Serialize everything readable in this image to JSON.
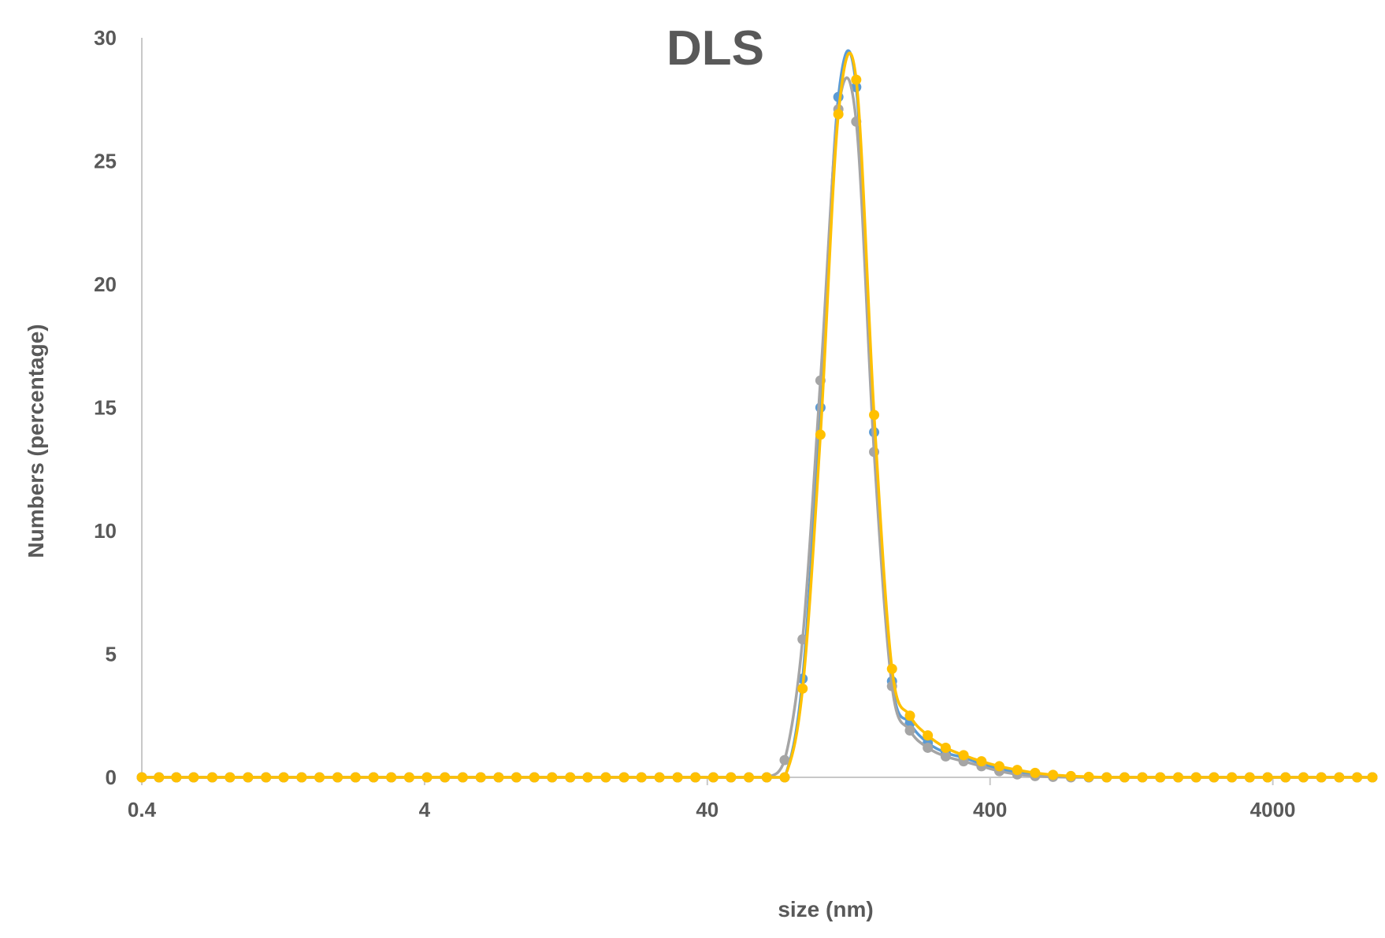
{
  "chart_data": {
    "type": "line",
    "title": "DLS",
    "xlabel": "size (nm)",
    "ylabel": "Numbers (percentage)",
    "xscale": "log",
    "xlim": [
      0.4,
      9000
    ],
    "ylim": [
      0,
      30
    ],
    "xticks": [
      "0.4",
      "4",
      "40",
      "400",
      "4000"
    ],
    "yticks": [
      "0",
      "5",
      "10",
      "15",
      "20",
      "25",
      "30"
    ],
    "grid": false,
    "legend": "none",
    "series": [
      {
        "color": "#5B9BD5",
        "points": [
          [
            0.4,
            0
          ],
          [
            0.46,
            0
          ],
          [
            0.53,
            0
          ],
          [
            0.61,
            0
          ],
          [
            0.71,
            0
          ],
          [
            0.82,
            0
          ],
          [
            0.95,
            0
          ],
          [
            1.1,
            0
          ],
          [
            1.27,
            0
          ],
          [
            1.47,
            0
          ],
          [
            1.7,
            0
          ],
          [
            1.97,
            0
          ],
          [
            2.28,
            0
          ],
          [
            2.64,
            0
          ],
          [
            3.05,
            0
          ],
          [
            3.53,
            0
          ],
          [
            4.08,
            0
          ],
          [
            4.72,
            0
          ],
          [
            5.46,
            0
          ],
          [
            6.32,
            0
          ],
          [
            7.31,
            0
          ],
          [
            8.45,
            0
          ],
          [
            9.78,
            0
          ],
          [
            11.3,
            0
          ],
          [
            13.1,
            0
          ],
          [
            15.1,
            0
          ],
          [
            17.5,
            0
          ],
          [
            20.3,
            0
          ],
          [
            23.4,
            0
          ],
          [
            27.1,
            0
          ],
          [
            31.4,
            0
          ],
          [
            36.3,
            0
          ],
          [
            42,
            0
          ],
          [
            48.5,
            0
          ],
          [
            56.1,
            0
          ],
          [
            64.9,
            0
          ],
          [
            75.1,
            0
          ],
          [
            86.9,
            4.0
          ],
          [
            100.5,
            15.0
          ],
          [
            116.3,
            27.6
          ],
          [
            134.5,
            28.0
          ],
          [
            155.6,
            14.0
          ],
          [
            180,
            3.9
          ],
          [
            208.3,
            2.2
          ],
          [
            240.9,
            1.4
          ],
          [
            278.7,
            1.0
          ],
          [
            322.4,
            0.8
          ],
          [
            373,
            0.55
          ],
          [
            431.4,
            0.35
          ],
          [
            499.1,
            0.2
          ],
          [
            577.3,
            0.1
          ],
          [
            667.9,
            0.05
          ],
          [
            772.6,
            0.02
          ],
          [
            893.8,
            0
          ],
          [
            1034,
            0
          ],
          [
            1196,
            0
          ],
          [
            1383,
            0
          ],
          [
            1600,
            0
          ],
          [
            1851,
            0
          ],
          [
            2142,
            0
          ],
          [
            2477,
            0
          ],
          [
            2866,
            0
          ],
          [
            3315,
            0
          ],
          [
            3835,
            0
          ],
          [
            4437,
            0
          ],
          [
            5133,
            0
          ],
          [
            5938,
            0
          ],
          [
            6869,
            0
          ],
          [
            7946,
            0
          ],
          [
            9000,
            0
          ]
        ]
      },
      {
        "color": "#A5A5A5",
        "points": [
          [
            0.4,
            0
          ],
          [
            0.46,
            0
          ],
          [
            0.53,
            0
          ],
          [
            0.61,
            0
          ],
          [
            0.71,
            0
          ],
          [
            0.82,
            0
          ],
          [
            0.95,
            0
          ],
          [
            1.1,
            0
          ],
          [
            1.27,
            0
          ],
          [
            1.47,
            0
          ],
          [
            1.7,
            0
          ],
          [
            1.97,
            0
          ],
          [
            2.28,
            0
          ],
          [
            2.64,
            0
          ],
          [
            3.05,
            0
          ],
          [
            3.53,
            0
          ],
          [
            4.08,
            0
          ],
          [
            4.72,
            0
          ],
          [
            5.46,
            0
          ],
          [
            6.32,
            0
          ],
          [
            7.31,
            0
          ],
          [
            8.45,
            0
          ],
          [
            9.78,
            0
          ],
          [
            11.3,
            0
          ],
          [
            13.1,
            0
          ],
          [
            15.1,
            0
          ],
          [
            17.5,
            0
          ],
          [
            20.3,
            0
          ],
          [
            23.4,
            0
          ],
          [
            27.1,
            0
          ],
          [
            31.4,
            0
          ],
          [
            36.3,
            0
          ],
          [
            42,
            0
          ],
          [
            48.5,
            0
          ],
          [
            56.1,
            0
          ],
          [
            64.9,
            0
          ],
          [
            75.1,
            0.7
          ],
          [
            86.9,
            5.6
          ],
          [
            100.5,
            16.1
          ],
          [
            116.3,
            27.1
          ],
          [
            134.5,
            26.6
          ],
          [
            155.6,
            13.2
          ],
          [
            180,
            3.7
          ],
          [
            208.3,
            1.9
          ],
          [
            240.9,
            1.2
          ],
          [
            278.7,
            0.85
          ],
          [
            322.4,
            0.65
          ],
          [
            373,
            0.45
          ],
          [
            431.4,
            0.25
          ],
          [
            499.1,
            0.12
          ],
          [
            577.3,
            0.05
          ],
          [
            667.9,
            0.02
          ],
          [
            772.6,
            0
          ],
          [
            893.8,
            0
          ],
          [
            1034,
            0
          ],
          [
            1196,
            0
          ],
          [
            1383,
            0
          ],
          [
            1600,
            0
          ],
          [
            1851,
            0
          ],
          [
            2142,
            0
          ],
          [
            2477,
            0
          ],
          [
            2866,
            0
          ],
          [
            3315,
            0
          ],
          [
            3835,
            0
          ],
          [
            4437,
            0
          ],
          [
            5133,
            0
          ],
          [
            5938,
            0
          ],
          [
            6869,
            0
          ],
          [
            7946,
            0
          ],
          [
            9000,
            0
          ]
        ]
      },
      {
        "color": "#FFC000",
        "points": [
          [
            0.4,
            0
          ],
          [
            0.46,
            0
          ],
          [
            0.53,
            0
          ],
          [
            0.61,
            0
          ],
          [
            0.71,
            0
          ],
          [
            0.82,
            0
          ],
          [
            0.95,
            0
          ],
          [
            1.1,
            0
          ],
          [
            1.27,
            0
          ],
          [
            1.47,
            0
          ],
          [
            1.7,
            0
          ],
          [
            1.97,
            0
          ],
          [
            2.28,
            0
          ],
          [
            2.64,
            0
          ],
          [
            3.05,
            0
          ],
          [
            3.53,
            0
          ],
          [
            4.08,
            0
          ],
          [
            4.72,
            0
          ],
          [
            5.46,
            0
          ],
          [
            6.32,
            0
          ],
          [
            7.31,
            0
          ],
          [
            8.45,
            0
          ],
          [
            9.78,
            0
          ],
          [
            11.3,
            0
          ],
          [
            13.1,
            0
          ],
          [
            15.1,
            0
          ],
          [
            17.5,
            0
          ],
          [
            20.3,
            0
          ],
          [
            23.4,
            0
          ],
          [
            27.1,
            0
          ],
          [
            31.4,
            0
          ],
          [
            36.3,
            0
          ],
          [
            42,
            0
          ],
          [
            48.5,
            0
          ],
          [
            56.1,
            0
          ],
          [
            64.9,
            0
          ],
          [
            75.1,
            0
          ],
          [
            86.9,
            3.6
          ],
          [
            100.5,
            13.9
          ],
          [
            116.3,
            26.9
          ],
          [
            134.5,
            28.3
          ],
          [
            155.6,
            14.7
          ],
          [
            180,
            4.4
          ],
          [
            208.3,
            2.5
          ],
          [
            240.9,
            1.7
          ],
          [
            278.7,
            1.2
          ],
          [
            322.4,
            0.9
          ],
          [
            373,
            0.65
          ],
          [
            431.4,
            0.45
          ],
          [
            499.1,
            0.3
          ],
          [
            577.3,
            0.18
          ],
          [
            667.9,
            0.1
          ],
          [
            772.6,
            0.05
          ],
          [
            893.8,
            0.02
          ],
          [
            1034,
            0
          ],
          [
            1196,
            0
          ],
          [
            1383,
            0
          ],
          [
            1600,
            0
          ],
          [
            1851,
            0
          ],
          [
            2142,
            0
          ],
          [
            2477,
            0
          ],
          [
            2866,
            0
          ],
          [
            3315,
            0
          ],
          [
            3835,
            0
          ],
          [
            4437,
            0
          ],
          [
            5133,
            0
          ],
          [
            5938,
            0
          ],
          [
            6869,
            0
          ],
          [
            7946,
            0
          ],
          [
            9000,
            0
          ]
        ]
      }
    ]
  }
}
